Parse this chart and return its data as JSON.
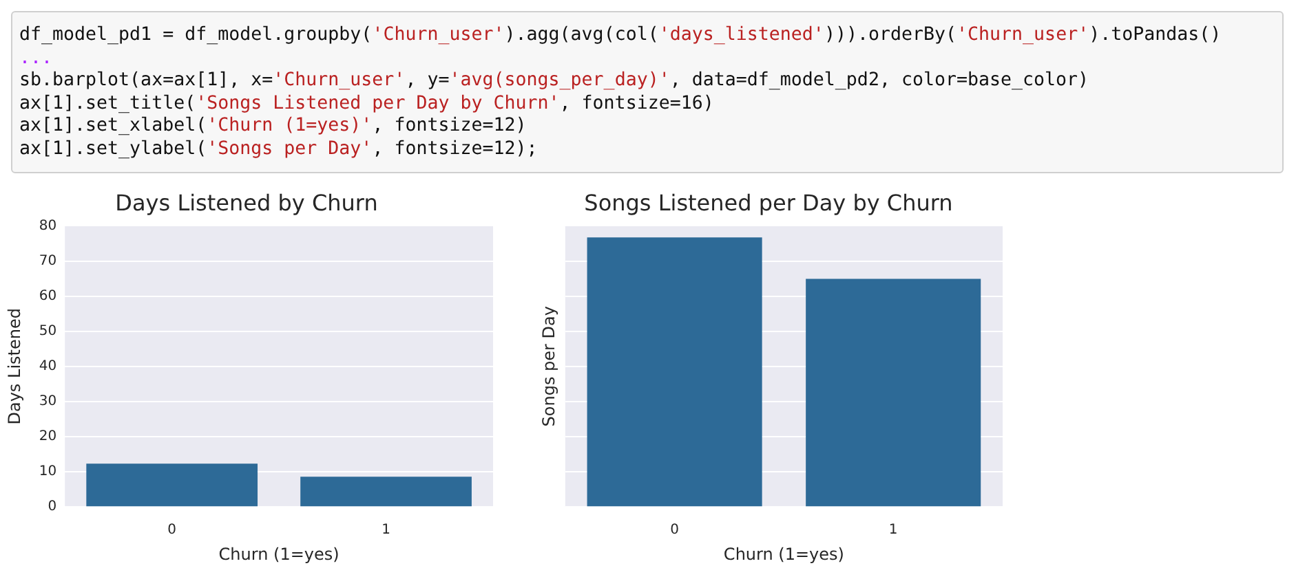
{
  "chart_data": [
    {
      "type": "other",
      "annotations": [
        "df_model_pd1 = df_model.groupby('Churn_user').agg(avg(col('days_listened'))).orderBy('Churn_user').toPandas()",
        "...",
        "sb.barplot(ax=ax[1], x='Churn_user', y='avg(songs_per_day)', data=df_model_pd2, color=base_color)",
        "ax[1].set_title('Songs Listened per Day by Churn', fontsize=16)",
        "ax[1].set_xlabel('Churn (1=yes)', fontsize=12)",
        "ax[1].set_ylabel('Songs per Day', fontsize=12);"
      ]
    },
    {
      "type": "bar",
      "title": "Days Listened by Churn",
      "xlabel": "Churn (1=yes)",
      "ylabel": "Days Listened",
      "categories": [
        "0",
        "1"
      ],
      "values": [
        12.3,
        8.6
      ],
      "color": "#2d6a97",
      "ylim": [
        0,
        80
      ],
      "yticks": [
        0,
        10,
        20,
        30,
        40,
        50,
        60,
        70,
        80
      ],
      "grid": "y"
    },
    {
      "type": "bar",
      "title": "Songs Listened per Day by Churn",
      "xlabel": "Churn (1=yes)",
      "ylabel": "Songs per Day",
      "categories": [
        "0",
        "1"
      ],
      "values": [
        76.7,
        64.9
      ],
      "color": "#2d6a97",
      "ylim": [
        0,
        80
      ],
      "yticks": [
        0,
        10,
        20,
        30,
        40,
        50,
        60,
        70,
        80
      ],
      "grid": "y",
      "tick_labels": "x"
    }
  ]
}
